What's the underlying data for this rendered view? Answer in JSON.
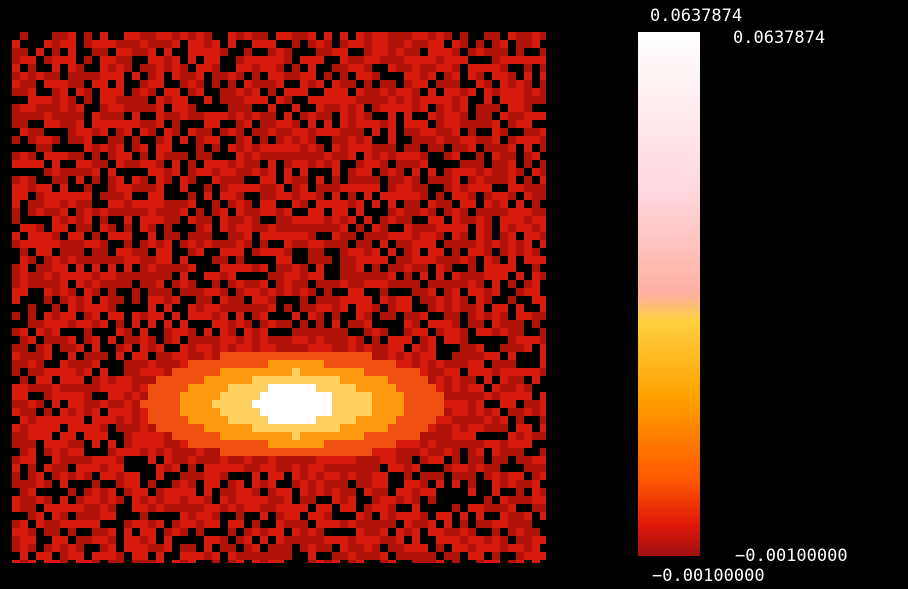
{
  "colorbar": {
    "max_label": "0.0637874",
    "max_label_side": "0.0637874",
    "min_label_side": "−0.00100000",
    "min_label": "−0.00100000"
  }
}
